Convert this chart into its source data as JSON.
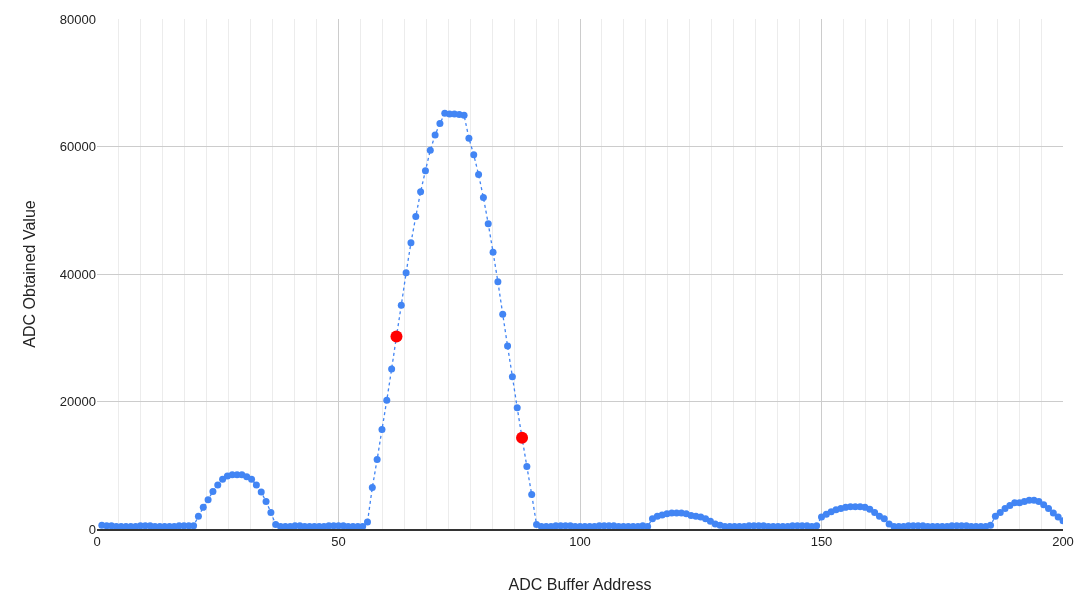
{
  "chart_data": {
    "type": "line",
    "xlabel": "ADC Buffer Address",
    "ylabel": "ADC Obtained Value",
    "x": [
      1,
      2,
      3,
      4,
      5,
      6,
      7,
      8,
      9,
      10,
      11,
      12,
      13,
      14,
      15,
      16,
      17,
      18,
      19,
      20,
      21,
      22,
      23,
      24,
      25,
      26,
      27,
      28,
      29,
      30,
      31,
      32,
      33,
      34,
      35,
      36,
      37,
      38,
      39,
      40,
      41,
      42,
      43,
      44,
      45,
      46,
      47,
      48,
      49,
      50,
      51,
      52,
      53,
      54,
      55,
      56,
      57,
      58,
      59,
      60,
      61,
      62,
      63,
      64,
      65,
      66,
      67,
      68,
      69,
      70,
      71,
      72,
      73,
      74,
      75,
      76,
      77,
      78,
      79,
      80,
      81,
      82,
      83,
      84,
      85,
      86,
      87,
      88,
      89,
      90,
      91,
      92,
      93,
      94,
      95,
      96,
      97,
      98,
      99,
      100,
      101,
      102,
      103,
      104,
      105,
      106,
      107,
      108,
      109,
      110,
      111,
      112,
      113,
      114,
      115,
      116,
      117,
      118,
      119,
      120,
      121,
      122,
      123,
      124,
      125,
      126,
      127,
      128,
      129,
      130,
      131,
      132,
      133,
      134,
      135,
      136,
      137,
      138,
      139,
      140,
      141,
      142,
      143,
      144,
      145,
      146,
      147,
      148,
      149,
      150,
      151,
      152,
      153,
      154,
      155,
      156,
      157,
      158,
      159,
      160,
      161,
      162,
      163,
      164,
      165,
      166,
      167,
      168,
      169,
      170,
      171,
      172,
      173,
      174,
      175,
      176,
      177,
      178,
      179,
      180,
      181,
      182,
      183,
      184,
      185,
      186,
      187,
      188,
      189,
      190,
      191,
      192,
      193,
      194,
      195,
      196,
      197,
      198,
      199,
      200
    ],
    "series": [
      {
        "color": "#4285f4",
        "marker": "circle",
        "line_style": "dotted",
        "values": [
          600,
          500,
          500,
          400,
          400,
          400,
          400,
          400,
          500,
          500,
          500,
          400,
          400,
          400,
          400,
          400,
          500,
          500,
          500,
          500,
          2000,
          3400,
          4600,
          5900,
          6900,
          7800,
          8300,
          8500,
          8500,
          8500,
          8200,
          7800,
          6900,
          5800,
          4300,
          2600,
          700,
          400,
          400,
          400,
          500,
          500,
          400,
          400,
          400,
          400,
          400,
          500,
          500,
          500,
          500,
          400,
          400,
          400,
          400,
          1100,
          6500,
          10900,
          15600,
          20200,
          25100,
          30200,
          35100,
          40200,
          44900,
          49000,
          52900,
          56200,
          59400,
          61800,
          63600,
          65200,
          65100,
          65100,
          65000,
          64900,
          61300,
          58700,
          55600,
          52000,
          47900,
          43400,
          38800,
          33700,
          28700,
          23900,
          19000,
          14300,
          9800,
          5400,
          700,
          400,
          400,
          400,
          500,
          500,
          500,
          500,
          400,
          400,
          400,
          400,
          400,
          500,
          500,
          500,
          500,
          400,
          400,
          400,
          400,
          400,
          500,
          400,
          1600,
          2000,
          2200,
          2400,
          2500,
          2500,
          2500,
          2400,
          2100,
          2000,
          1900,
          1600,
          1200,
          800,
          600,
          400,
          400,
          400,
          400,
          400,
          500,
          500,
          500,
          500,
          400,
          400,
          400,
          400,
          400,
          500,
          500,
          500,
          500,
          400,
          500,
          1900,
          2300,
          2700,
          3000,
          3200,
          3400,
          3500,
          3500,
          3500,
          3400,
          3100,
          2600,
          2000,
          1600,
          800,
          400,
          400,
          400,
          500,
          500,
          500,
          500,
          400,
          400,
          400,
          400,
          400,
          500,
          500,
          500,
          500,
          400,
          400,
          400,
          400,
          600,
          2000,
          2600,
          3200,
          3700,
          4100,
          4100,
          4300,
          4500,
          4500,
          4300,
          3800,
          3200,
          2500,
          1900,
          1300
        ]
      },
      {
        "type": "scatter",
        "color": "#ff0000",
        "marker": "circle",
        "x": [
          62,
          88
        ],
        "values": [
          30200,
          14300
        ]
      }
    ],
    "xlim": [
      0,
      200
    ],
    "xticks": [
      0,
      50,
      100,
      150,
      200
    ],
    "ylim": [
      0,
      80000
    ],
    "yticks": [
      0,
      20000,
      40000,
      60000,
      80000
    ],
    "grid": true
  }
}
